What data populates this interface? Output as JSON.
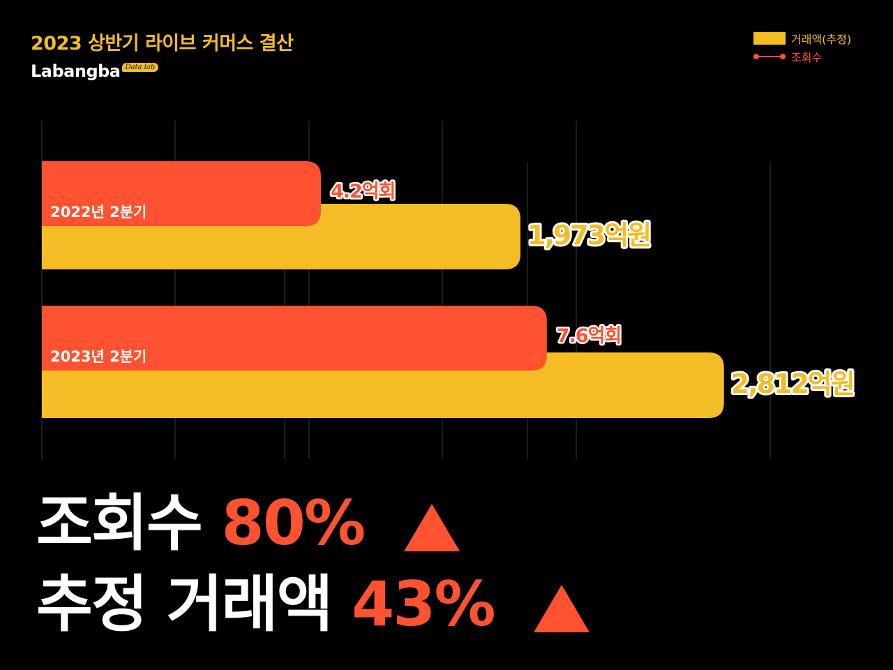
{
  "title": "2023 상반기 라이브 커머스 결산",
  "logo": {
    "word": "Labangba",
    "tag": "Data lab"
  },
  "legend": {
    "bar_label": "거래액(추정)",
    "line_label": "조회수"
  },
  "colors": {
    "background": "#000000",
    "amount": "#F4BD25",
    "views": "#FF5230",
    "grid": "#3a3a3a"
  },
  "chart_data": {
    "type": "bar",
    "orientation": "horizontal",
    "categories": [
      "2022년 2분기",
      "2023년 2분기"
    ],
    "series": [
      {
        "name": "조회수",
        "unit": "억회",
        "values": [
          4.2,
          7.6
        ],
        "labels": [
          "4.2억회",
          "7.6억회"
        ],
        "color": "#FF5230"
      },
      {
        "name": "거래액(추정)",
        "unit": "억원",
        "values": [
          1973,
          2812
        ],
        "labels": [
          "1,973억원",
          "2,812억원"
        ],
        "color": "#F4BD25"
      }
    ],
    "grid": true,
    "legend_position": "top-right"
  },
  "summary": [
    {
      "label": "조회수",
      "value": "80%",
      "arrow": "up"
    },
    {
      "label": "추정 거래액",
      "value": "43%",
      "arrow": "up"
    }
  ]
}
